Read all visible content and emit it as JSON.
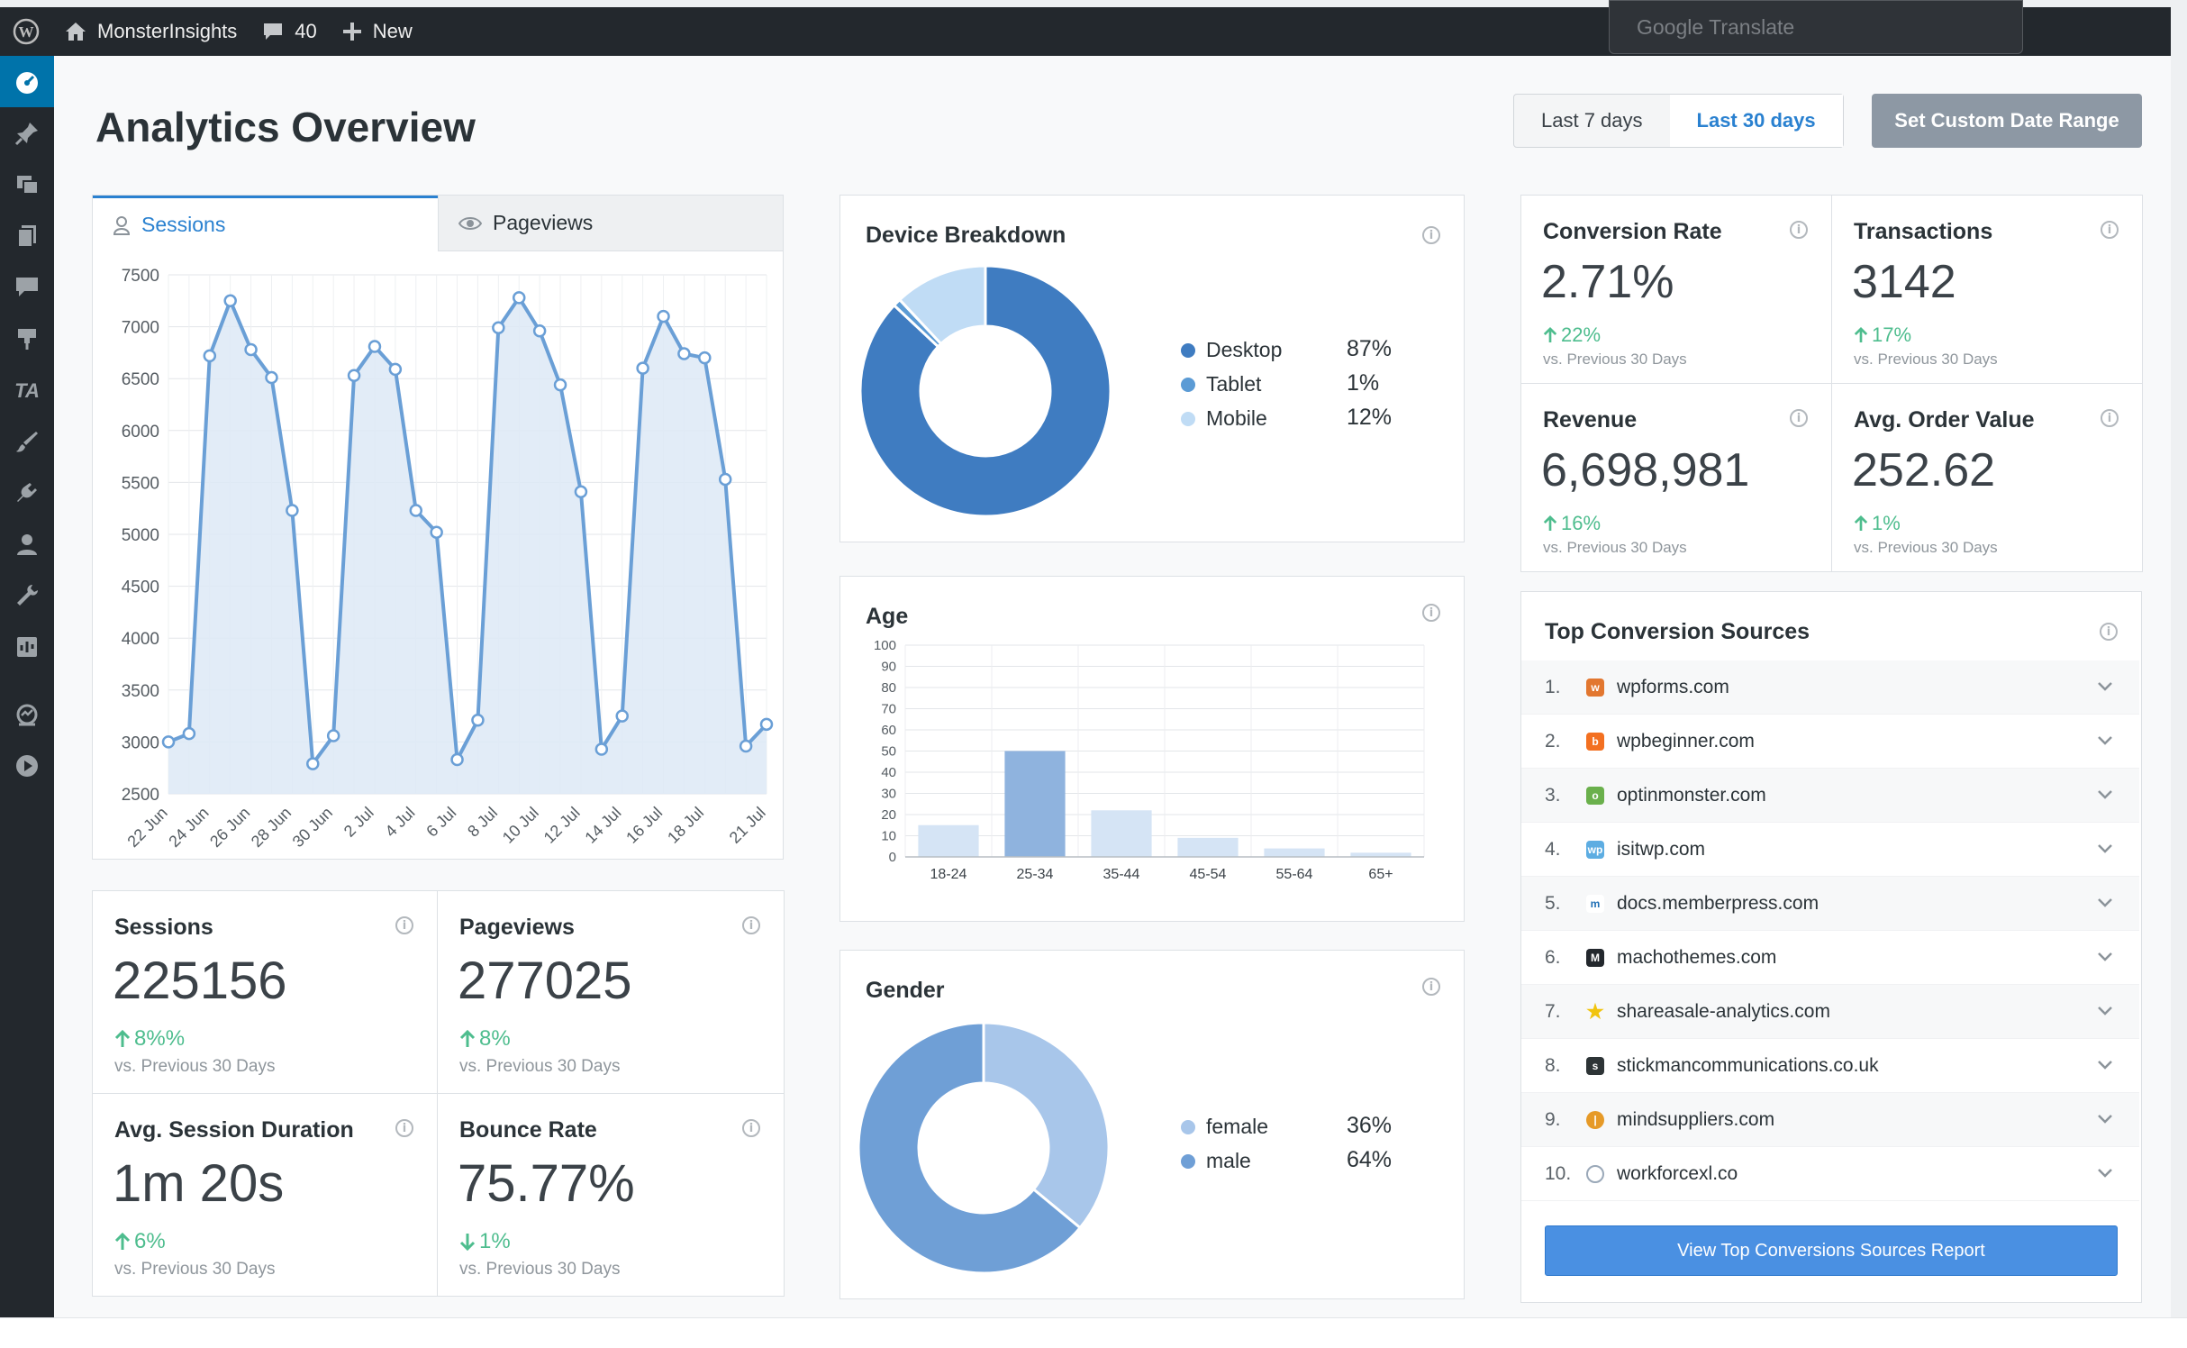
{
  "admin_bar": {
    "site_name": "MonsterInsights",
    "comments_count": "40",
    "new_label": "New"
  },
  "google_translate": {
    "label": "Google Translate"
  },
  "page": {
    "title": "Analytics Overview",
    "range_buttons": [
      "Last 7 days",
      "Last 30 days"
    ],
    "active_range": "Last 30 days",
    "custom_range_label": "Set Custom Date Range"
  },
  "traffic_chart": {
    "tabs": {
      "sessions": "Sessions",
      "pageviews": "Pageviews"
    }
  },
  "stats": {
    "sessions": {
      "label": "Sessions",
      "value": "225156",
      "change": "8%%",
      "vs": "vs. Previous 30 Days"
    },
    "pageviews": {
      "label": "Pageviews",
      "value": "277025",
      "change": "8%",
      "vs": "vs. Previous 30 Days"
    },
    "avg_session": {
      "label": "Avg. Session Duration",
      "value": "1m 20s",
      "change": "6%",
      "vs": "vs. Previous 30 Days"
    },
    "bounce_rate": {
      "label": "Bounce Rate",
      "value": "75.77%",
      "change": "1%",
      "vs": "vs. Previous 30 Days"
    }
  },
  "device": {
    "title": "Device Breakdown",
    "items": [
      {
        "label": "Desktop",
        "pct": "87%"
      },
      {
        "label": "Tablet",
        "pct": "1%"
      },
      {
        "label": "Mobile",
        "pct": "12%"
      }
    ]
  },
  "age": {
    "title": "Age"
  },
  "gender": {
    "title": "Gender",
    "items": [
      {
        "label": "female",
        "pct": "36%"
      },
      {
        "label": "male",
        "pct": "64%"
      }
    ]
  },
  "ecommerce": {
    "conversion_rate": {
      "label": "Conversion Rate",
      "value": "2.71%",
      "change": "22%",
      "vs": "vs. Previous 30 Days"
    },
    "transactions": {
      "label": "Transactions",
      "value": "3142",
      "change": "17%",
      "vs": "vs. Previous 30 Days"
    },
    "revenue": {
      "label": "Revenue",
      "value": "6,698,981",
      "change": "16%",
      "vs": "vs. Previous 30 Days"
    },
    "avg_order": {
      "label": "Avg. Order Value",
      "value": "252.62",
      "change": "1%",
      "vs": "vs. Previous 30 Days"
    }
  },
  "conversion_sources": {
    "title": "Top Conversion Sources",
    "items": [
      {
        "num": "1.",
        "domain": "wpforms.com"
      },
      {
        "num": "2.",
        "domain": "wpbeginner.com"
      },
      {
        "num": "3.",
        "domain": "optinmonster.com"
      },
      {
        "num": "4.",
        "domain": "isitwp.com"
      },
      {
        "num": "5.",
        "domain": "docs.memberpress.com"
      },
      {
        "num": "6.",
        "domain": "machothemes.com"
      },
      {
        "num": "7.",
        "domain": "shareasale-analytics.com"
      },
      {
        "num": "8.",
        "domain": "stickmancommunications.co.uk"
      },
      {
        "num": "9.",
        "domain": "mindsuppliers.com"
      },
      {
        "num": "10.",
        "domain": "workforcexl.co"
      }
    ],
    "button_label": "View Top Conversions Sources Report"
  },
  "colors": {
    "accent": "#2a81d0",
    "positive": "#4ebd8e",
    "desktop": "#3f7cc1",
    "tablet": "#5b9bd5",
    "mobile": "#c0dcf5",
    "female": "#a8c6ea",
    "male": "#6f9fd6"
  },
  "chart_data": [
    {
      "type": "line",
      "title": "Sessions",
      "x": [
        "22 Jun",
        "23 Jun",
        "24 Jun",
        "25 Jun",
        "26 Jun",
        "27 Jun",
        "28 Jun",
        "29 Jun",
        "30 Jun",
        "1 Jul",
        "2 Jul",
        "3 Jul",
        "4 Jul",
        "5 Jul",
        "6 Jul",
        "7 Jul",
        "8 Jul",
        "9 Jul",
        "10 Jul",
        "11 Jul",
        "12 Jul",
        "13 Jul",
        "14 Jul",
        "15 Jul",
        "16 Jul",
        "17 Jul",
        "18 Jul",
        "19 Jul",
        "20 Jul",
        "21 Jul"
      ],
      "xticks": [
        "22 Jun",
        "24 Jun",
        "26 Jun",
        "28 Jun",
        "30 Jun",
        "2 Jul",
        "4 Jul",
        "6 Jul",
        "8 Jul",
        "10 Jul",
        "12 Jul",
        "14 Jul",
        "16 Jul",
        "18 Jul",
        "21 Jul"
      ],
      "values": [
        3000,
        3080,
        6720,
        7250,
        6780,
        6510,
        5230,
        2790,
        3060,
        6530,
        6810,
        6590,
        5230,
        5020,
        2830,
        3210,
        6990,
        7280,
        6960,
        6440,
        5410,
        2930,
        3250,
        6600,
        7100,
        6740,
        6700,
        5530,
        2960,
        3170
      ],
      "yticks": [
        2500,
        3000,
        3500,
        4000,
        4500,
        5000,
        5500,
        6000,
        6500,
        7000,
        7500
      ],
      "ylim": [
        2500,
        7500
      ]
    },
    {
      "type": "pie",
      "title": "Device Breakdown",
      "labels": [
        "Desktop",
        "Tablet",
        "Mobile"
      ],
      "values": [
        87,
        1,
        12
      ]
    },
    {
      "type": "bar",
      "title": "Age",
      "categories": [
        "18-24",
        "25-34",
        "35-44",
        "45-54",
        "55-64",
        "65+"
      ],
      "values": [
        15,
        50,
        22,
        9,
        4,
        2
      ],
      "yticks": [
        0,
        10,
        20,
        30,
        40,
        50,
        60,
        70,
        80,
        90,
        100
      ],
      "ylim": [
        0,
        100
      ]
    },
    {
      "type": "pie",
      "title": "Gender",
      "labels": [
        "female",
        "male"
      ],
      "values": [
        36,
        64
      ]
    }
  ]
}
